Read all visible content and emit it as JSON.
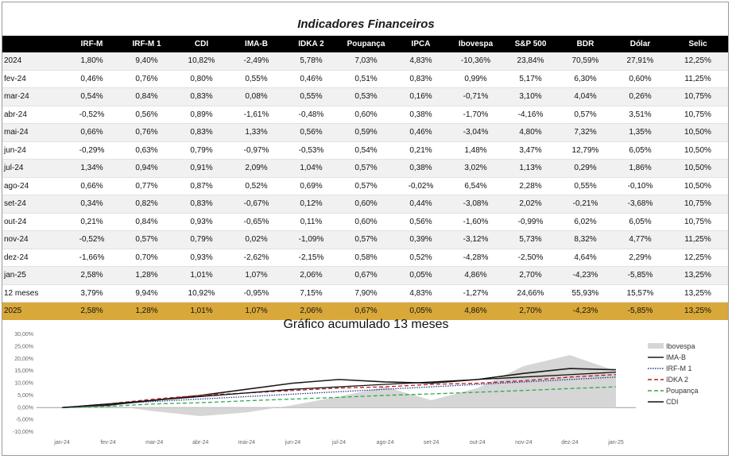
{
  "title": "Indicadores Financeiros",
  "table": {
    "columns": [
      "",
      "IRF-M",
      "IRF-M 1",
      "CDI",
      "IMA-B",
      "IDKA 2",
      "Poupança",
      "IPCA",
      "Ibovespa",
      "S&P 500",
      "BDR",
      "Dólar",
      "Selic"
    ],
    "rows": [
      {
        "label": "2024",
        "values": [
          "1,80%",
          "9,40%",
          "10,82%",
          "-2,49%",
          "5,78%",
          "7,03%",
          "4,83%",
          "-10,36%",
          "23,84%",
          "70,59%",
          "27,91%",
          "12,25%"
        ]
      },
      {
        "label": "fev-24",
        "values": [
          "0,46%",
          "0,76%",
          "0,80%",
          "0,55%",
          "0,46%",
          "0,51%",
          "0,83%",
          "0,99%",
          "5,17%",
          "6,30%",
          "0,60%",
          "11,25%"
        ]
      },
      {
        "label": "mar-24",
        "values": [
          "0,54%",
          "0,84%",
          "0,83%",
          "0,08%",
          "0,55%",
          "0,53%",
          "0,16%",
          "-0,71%",
          "3,10%",
          "4,04%",
          "0,26%",
          "10,75%"
        ]
      },
      {
        "label": "abr-24",
        "values": [
          "-0,52%",
          "0,56%",
          "0,89%",
          "-1,61%",
          "-0,48%",
          "0,60%",
          "0,38%",
          "-1,70%",
          "-4,16%",
          "0,57%",
          "3,51%",
          "10,75%"
        ]
      },
      {
        "label": "mai-24",
        "values": [
          "0,66%",
          "0,76%",
          "0,83%",
          "1,33%",
          "0,56%",
          "0,59%",
          "0,46%",
          "-3,04%",
          "4,80%",
          "7,32%",
          "1,35%",
          "10,50%"
        ]
      },
      {
        "label": "jun-24",
        "values": [
          "-0,29%",
          "0,63%",
          "0,79%",
          "-0,97%",
          "-0,53%",
          "0,54%",
          "0,21%",
          "1,48%",
          "3,47%",
          "12,79%",
          "6,05%",
          "10,50%"
        ]
      },
      {
        "label": "jul-24",
        "values": [
          "1,34%",
          "0,94%",
          "0,91%",
          "2,09%",
          "1,04%",
          "0,57%",
          "0,38%",
          "3,02%",
          "1,13%",
          "0,29%",
          "1,86%",
          "10,50%"
        ]
      },
      {
        "label": "ago-24",
        "values": [
          "0,66%",
          "0,77%",
          "0,87%",
          "0,52%",
          "0,69%",
          "0,57%",
          "-0,02%",
          "6,54%",
          "2,28%",
          "0,55%",
          "-0,10%",
          "10,50%"
        ]
      },
      {
        "label": "set-24",
        "values": [
          "0,34%",
          "0,82%",
          "0,83%",
          "-0,67%",
          "0,12%",
          "0,60%",
          "0,44%",
          "-3,08%",
          "2,02%",
          "-0,21%",
          "-3,68%",
          "10,75%"
        ]
      },
      {
        "label": "out-24",
        "values": [
          "0,21%",
          "0,84%",
          "0,93%",
          "-0,65%",
          "0,11%",
          "0,60%",
          "0,56%",
          "-1,60%",
          "-0,99%",
          "6,02%",
          "6,05%",
          "10,75%"
        ]
      },
      {
        "label": "nov-24",
        "values": [
          "-0,52%",
          "0,57%",
          "0,79%",
          "0,02%",
          "-1,09%",
          "0,57%",
          "0,39%",
          "-3,12%",
          "5,73%",
          "8,32%",
          "4,77%",
          "11,25%"
        ]
      },
      {
        "label": "dez-24",
        "values": [
          "-1,66%",
          "0,70%",
          "0,93%",
          "-2,62%",
          "-2,15%",
          "0,58%",
          "0,52%",
          "-4,28%",
          "-2,50%",
          "4,64%",
          "2,29%",
          "12,25%"
        ]
      },
      {
        "label": "jan-25",
        "values": [
          "2,58%",
          "1,28%",
          "1,01%",
          "1,07%",
          "2,06%",
          "0,67%",
          "0,05%",
          "4,86%",
          "2,70%",
          "-4,23%",
          "-5,85%",
          "13,25%"
        ]
      },
      {
        "label": "12 meses",
        "values": [
          "3,79%",
          "9,94%",
          "10,92%",
          "-0,95%",
          "7,15%",
          "7,90%",
          "4,83%",
          "-1,27%",
          "24,66%",
          "55,93%",
          "15,57%",
          "13,25%"
        ]
      },
      {
        "label": "2025",
        "values": [
          "2,58%",
          "1,28%",
          "1,01%",
          "1,07%",
          "2,06%",
          "0,67%",
          "0,05%",
          "4,86%",
          "2,70%",
          "-4,23%",
          "-5,85%",
          "13,25%"
        ],
        "highlight": true
      }
    ]
  },
  "chart_data": {
    "type": "line",
    "title": "Gráfico acumulado 13 meses",
    "categories": [
      "jan-24",
      "fev-24",
      "mar-24",
      "abr-24",
      "mai-24",
      "jun-24",
      "jul-24",
      "ago-24",
      "set-24",
      "out-24",
      "nov-24",
      "dez-24",
      "jan-25"
    ],
    "y_ticks": [
      "30,00%",
      "25,00%",
      "20,00%",
      "15,00%",
      "10,00%",
      "5,00%",
      "0,00%",
      "-5,00%",
      "-10,00%"
    ],
    "ylim": [
      -10,
      30
    ],
    "series": [
      {
        "name": "Ibovespa",
        "style": "area",
        "color": "#d6d6d6",
        "values": [
          0,
          1.0,
          -1.5,
          -3.5,
          -2.0,
          1.0,
          4.5,
          8.5,
          3.0,
          8.0,
          17.0,
          21.5,
          15.0
        ]
      },
      {
        "name": "IMA-B",
        "style": "solid",
        "color": "#1a1a1a",
        "values": [
          0,
          1.0,
          3.0,
          5.0,
          7.5,
          10.0,
          11.5,
          10.5,
          10.0,
          11.5,
          14.0,
          16.0,
          15.5
        ]
      },
      {
        "name": "IRF-M 1",
        "style": "dotted",
        "color": "#1f3a8a",
        "values": [
          0,
          1.5,
          2.5,
          3.5,
          4.5,
          5.5,
          6.5,
          7.5,
          8.5,
          9.5,
          10.5,
          11.5,
          12.5
        ]
      },
      {
        "name": "IDKA 2",
        "style": "dashed",
        "color": "#c0191e",
        "values": [
          0,
          1.5,
          3.5,
          5.0,
          6.0,
          7.0,
          8.0,
          8.5,
          9.5,
          10.0,
          11.0,
          12.5,
          13.5
        ]
      },
      {
        "name": "Poupança",
        "style": "dashed",
        "color": "#2ea84a",
        "values": [
          0,
          0.5,
          1.5,
          2.0,
          2.8,
          3.5,
          4.2,
          5.0,
          5.6,
          6.3,
          7.0,
          7.8,
          8.5
        ]
      },
      {
        "name": "CDI",
        "style": "solid",
        "color": "#111111",
        "values": [
          0,
          1.5,
          3.0,
          4.5,
          6.0,
          7.5,
          8.5,
          9.5,
          10.5,
          11.5,
          12.5,
          13.5,
          14.5
        ]
      }
    ]
  }
}
